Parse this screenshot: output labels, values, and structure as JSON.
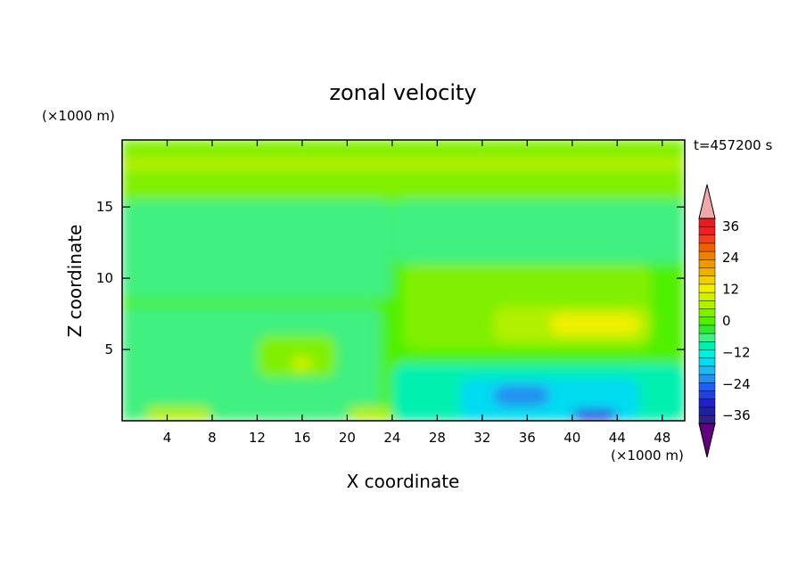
{
  "chart_data": {
    "type": "heatmap",
    "title": "zonal velocity",
    "xlabel": "X coordinate",
    "ylabel": "Z coordinate",
    "x_unit": "(×1000 m)",
    "y_unit": "(×1000 m)",
    "time_label": "t=457200 s",
    "xlim": [
      0,
      50
    ],
    "ylim": [
      0,
      19.7
    ],
    "x_ticks": [
      4,
      8,
      12,
      16,
      20,
      24,
      28,
      32,
      36,
      40,
      44,
      48
    ],
    "y_ticks": [
      5,
      10,
      15
    ],
    "colorbar": {
      "levels": [
        -42,
        -39,
        -36,
        -33,
        -30,
        -27,
        -24,
        -21,
        -18,
        -15,
        -12,
        -9,
        -6,
        -3,
        0,
        3,
        6,
        9,
        12,
        15,
        18,
        21,
        24,
        27,
        30,
        33,
        36,
        39,
        42
      ],
      "colors": [
        "#600080",
        "#30208c",
        "#2020a0",
        "#2020cc",
        "#2040e0",
        "#2060f0",
        "#2090f0",
        "#20b8f0",
        "#00dcf0",
        "#00f0e0",
        "#00f0b0",
        "#40f080",
        "#30e830",
        "#50f000",
        "#80f000",
        "#b0f000",
        "#d0f000",
        "#f0f000",
        "#f0d000",
        "#f0b000",
        "#f09800",
        "#f08000",
        "#f06000",
        "#f04020",
        "#f02020",
        "#e02020",
        "#f0a8a8"
      ],
      "tick_values": [
        36,
        24,
        12,
        0,
        -12,
        -24,
        -36
      ],
      "tick_labels": [
        "36",
        "24",
        "12",
        "0",
        "−12",
        "−24",
        "−36"
      ]
    },
    "field_regions": [
      {
        "x0": 0,
        "x1": 50,
        "y0": 0,
        "y1": 19.7,
        "value": 1
      },
      {
        "x0": 0,
        "x1": 50,
        "y0": 15.5,
        "y1": 19.7,
        "value": 4
      },
      {
        "x0": 0,
        "x1": 50,
        "y0": 17.5,
        "y1": 18.5,
        "value": 7
      },
      {
        "x0": 0,
        "x1": 24,
        "y0": 8.5,
        "y1": 15.5,
        "value": -4
      },
      {
        "x0": 24,
        "x1": 50,
        "y0": 11,
        "y1": 15.5,
        "value": -4
      },
      {
        "x0": 0,
        "x1": 23,
        "y0": 0,
        "y1": 8,
        "value": -5
      },
      {
        "x0": 24,
        "x1": 50,
        "y0": 0,
        "y1": 4,
        "value": -7
      },
      {
        "x0": 30,
        "x1": 46,
        "y0": 0,
        "y1": 3,
        "value": -13
      },
      {
        "x0": 33,
        "x1": 38,
        "y0": 1,
        "y1": 2.5,
        "value": -20
      },
      {
        "x0": 40,
        "x1": 44,
        "y0": 0,
        "y1": 0.8,
        "value": -26
      },
      {
        "x0": 25,
        "x1": 47,
        "y0": 5,
        "y1": 11,
        "value": 4
      },
      {
        "x0": 33,
        "x1": 47,
        "y0": 5.5,
        "y1": 8,
        "value": 8
      },
      {
        "x0": 38,
        "x1": 46,
        "y0": 6,
        "y1": 7.5,
        "value": 13
      },
      {
        "x0": 12,
        "x1": 19,
        "y0": 3,
        "y1": 6,
        "value": 3
      },
      {
        "x0": 15,
        "x1": 17,
        "y0": 3.5,
        "y1": 4.5,
        "value": 9
      },
      {
        "x0": 2,
        "x1": 8,
        "y0": 0,
        "y1": 1,
        "value": 8
      },
      {
        "x0": 20,
        "x1": 24,
        "y0": 0,
        "y1": 1,
        "value": 8
      }
    ]
  }
}
